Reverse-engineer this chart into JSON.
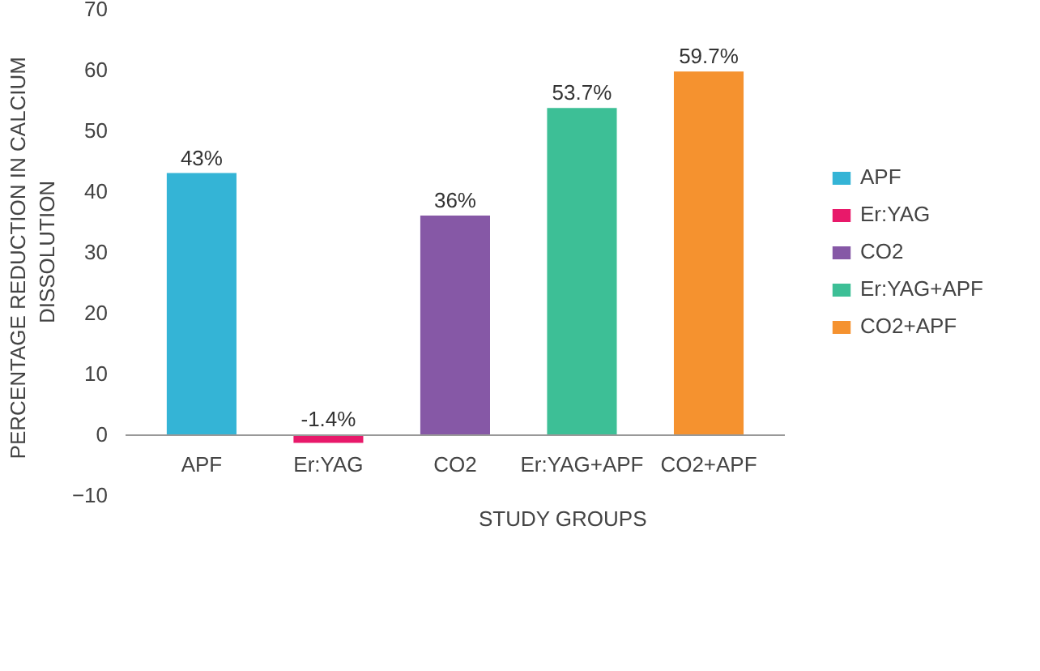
{
  "chart_data": {
    "type": "bar",
    "xlabel": "STUDY GROUPS",
    "ylabel": "PERCENTAGE  REDUCTION  IN CALCIUM\nDISSOLUTION",
    "categories": [
      "APF",
      "Er:YAG",
      "CO2",
      "Er:YAG+APF",
      "CO2+APF"
    ],
    "series": [
      {
        "name": "APF",
        "color": "#34b4d6",
        "values": [
          43,
          null,
          null,
          null,
          null
        ],
        "value_labels": [
          "43%",
          null,
          null,
          null,
          null
        ]
      },
      {
        "name": "Er:YAG",
        "color": "#e8196a",
        "values": [
          null,
          -1.4,
          null,
          null,
          null
        ],
        "value_labels": [
          null,
          "-1.4%",
          null,
          null,
          null
        ]
      },
      {
        "name": "CO2",
        "color": "#8658a6",
        "values": [
          null,
          null,
          36,
          null,
          null
        ],
        "value_labels": [
          null,
          null,
          "36%",
          null,
          null
        ]
      },
      {
        "name": "Er:YAG+APF",
        "color": "#3dbf96",
        "values": [
          null,
          null,
          null,
          53.7,
          null
        ],
        "value_labels": [
          null,
          null,
          null,
          "53.7%",
          null
        ]
      },
      {
        "name": "CO2+APF",
        "color": "#f5922f",
        "values": [
          null,
          null,
          null,
          null,
          59.7
        ],
        "value_labels": [
          null,
          null,
          null,
          null,
          "59.7%"
        ]
      }
    ],
    "ylim": [
      -10,
      70
    ],
    "yticks": [
      -10,
      0,
      10,
      20,
      30,
      40,
      50,
      60,
      70
    ],
    "grid": false,
    "legend": "right"
  }
}
